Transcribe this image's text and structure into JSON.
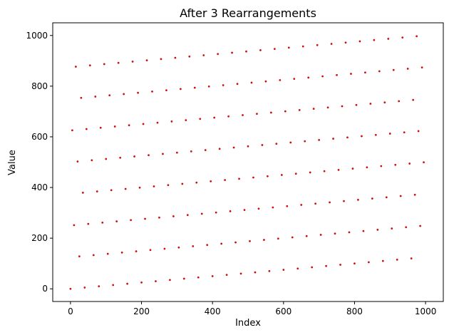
{
  "chart_data": {
    "type": "scatter",
    "title": "After 3 Rearrangements",
    "xlabel": "Index",
    "ylabel": "Value",
    "xlim": [
      -50,
      1050
    ],
    "ylim": [
      -50,
      1050
    ],
    "xticks": [
      0,
      200,
      400,
      600,
      800,
      1000
    ],
    "yticks": [
      0,
      200,
      400,
      600,
      800,
      1000
    ],
    "grid": false,
    "marker_color": "#ff0000",
    "marker_edge_color": "#8b0000",
    "series": [
      {
        "x": {
          "start": 0,
          "stop": 999,
          "step": 5
        },
        "y": {
          "bands": 8,
          "band_length": 125,
          "step_per_index": 0.125
        }
      }
    ]
  }
}
